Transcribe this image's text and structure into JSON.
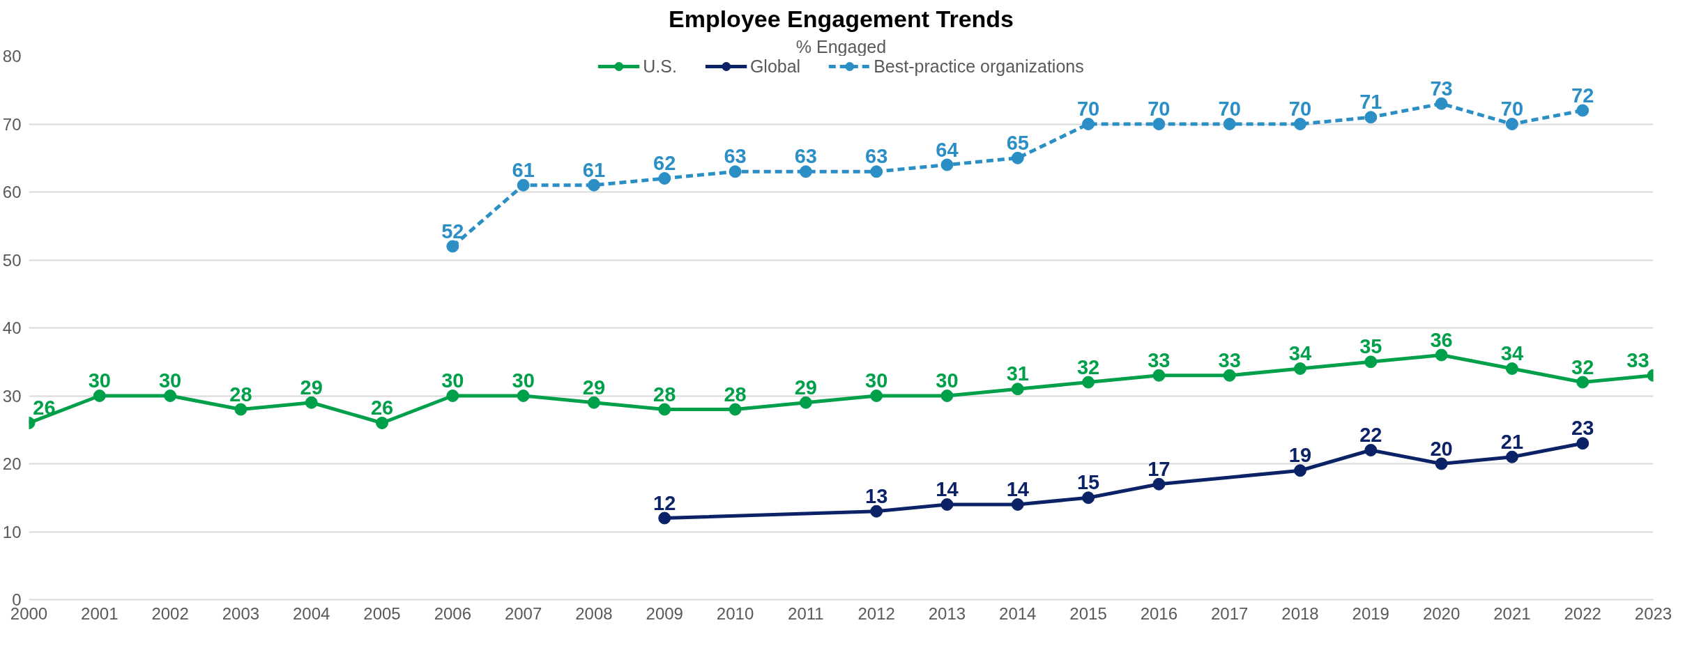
{
  "chart_data": {
    "type": "line",
    "title": "Employee Engagement Trends",
    "subtitle": "% Engaged",
    "x": [
      2000,
      2001,
      2002,
      2003,
      2004,
      2005,
      2006,
      2007,
      2008,
      2009,
      2010,
      2011,
      2012,
      2013,
      2014,
      2015,
      2016,
      2017,
      2018,
      2019,
      2020,
      2021,
      2022,
      2023
    ],
    "xlim": [
      2000,
      2023
    ],
    "xticks": [
      2000,
      2001,
      2002,
      2003,
      2004,
      2005,
      2006,
      2007,
      2008,
      2009,
      2010,
      2011,
      2012,
      2013,
      2014,
      2015,
      2016,
      2017,
      2018,
      2019,
      2020,
      2021,
      2022,
      2023
    ],
    "ylim": [
      0,
      80
    ],
    "yticks": [
      0,
      10,
      20,
      30,
      40,
      50,
      60,
      70,
      80
    ],
    "grid": "y",
    "legend": "top",
    "marker": "circle",
    "data_labels": true,
    "series": [
      {
        "name": "U.S.",
        "color": "#00a04b",
        "line_style": "solid",
        "values": [
          26,
          30,
          30,
          28,
          29,
          26,
          30,
          30,
          29,
          28,
          28,
          29,
          30,
          30,
          31,
          32,
          33,
          33,
          34,
          35,
          36,
          34,
          32,
          33
        ]
      },
      {
        "name": "Global",
        "color": "#0c2266",
        "line_style": "solid",
        "x": [
          2009,
          2012,
          2013,
          2014,
          2015,
          2016,
          2018,
          2019,
          2020,
          2021,
          2022
        ],
        "values": [
          12,
          13,
          14,
          14,
          15,
          17,
          19,
          22,
          20,
          21,
          23
        ]
      },
      {
        "name": "Best-practice organizations",
        "color": "#2b8fc6",
        "line_style": "dashed",
        "x": [
          2006,
          2007,
          2008,
          2009,
          2010,
          2011,
          2012,
          2013,
          2014,
          2015,
          2016,
          2017,
          2018,
          2019,
          2020,
          2021,
          2022
        ],
        "values": [
          52,
          61,
          61,
          62,
          63,
          63,
          63,
          64,
          65,
          70,
          70,
          70,
          70,
          71,
          73,
          70,
          72
        ]
      }
    ]
  }
}
